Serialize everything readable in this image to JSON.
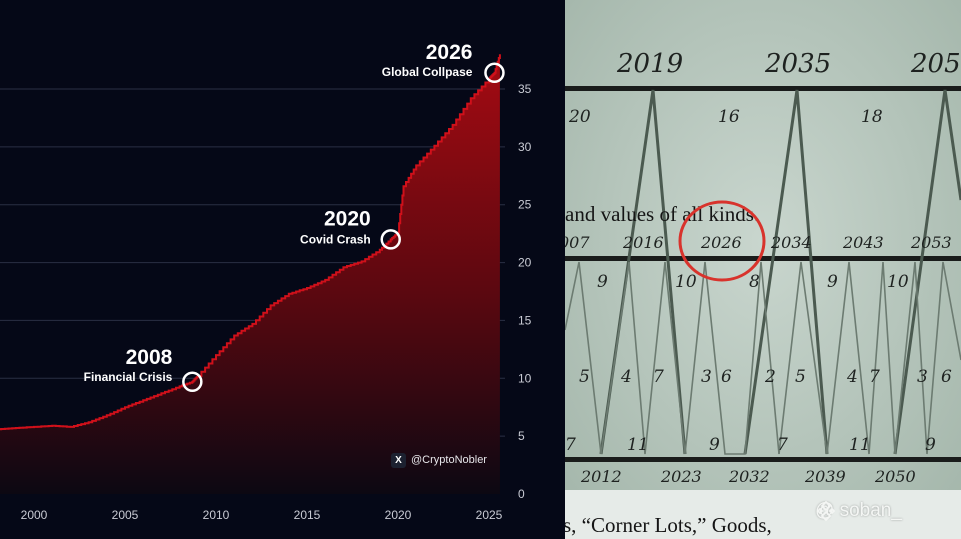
{
  "chart_data": {
    "type": "area",
    "x": [
      1998,
      1999,
      2000,
      2001,
      2002,
      2003,
      2004,
      2005,
      2006,
      2007,
      2008,
      2008.7,
      2009,
      2010,
      2011,
      2012,
      2013,
      2014,
      2015,
      2016,
      2017,
      2018,
      2019,
      2019.6,
      2020,
      2020.3,
      2021,
      2022,
      2023,
      2024,
      2025,
      2025.3,
      2025.6
    ],
    "values": [
      5.6,
      5.7,
      5.8,
      5.9,
      5.8,
      6.2,
      6.8,
      7.5,
      8.1,
      8.7,
      9.3,
      9.7,
      10.2,
      12.0,
      13.7,
      14.7,
      16.3,
      17.3,
      17.8,
      18.5,
      19.6,
      20.1,
      21.1,
      22.0,
      22.6,
      26.6,
      28.4,
      30.1,
      31.9,
      34.2,
      35.9,
      36.4,
      38.0
    ],
    "xlim": [
      1998,
      2026
    ],
    "ylim": [
      0,
      40
    ],
    "x_ticks": [
      "2000",
      "2005",
      "2010",
      "2015",
      "2020",
      "2025"
    ],
    "y_ticks": [
      "0",
      "5",
      "10",
      "15",
      "20",
      "25",
      "30",
      "35"
    ],
    "y_axis_side": "right",
    "grid": true,
    "colors": {
      "line": "#d0101a",
      "fill_top": "#a50b12",
      "fill_bottom": "#0c0812",
      "background": "#050817"
    },
    "annotations": [
      {
        "year": "2008",
        "label": "Financial Crisis",
        "x": 2008.7,
        "y": 9.7
      },
      {
        "year": "2020",
        "label": "Covid Crash",
        "x": 2019.6,
        "y": 22.0
      },
      {
        "year": "2026",
        "label": "Global Collpase",
        "x": 2025.3,
        "y": 36.4
      }
    ]
  },
  "credit": {
    "icon": "x-logo-icon",
    "x_letter": "X",
    "handle": "@CryptoNobler"
  },
  "right_panel": {
    "top_years": [
      "2019",
      "2035",
      "205"
    ],
    "top_numbers": [
      "20",
      "16",
      "18"
    ],
    "text_line_1": "and values of all kinds.",
    "middle_years": [
      "007",
      "2016",
      "2026",
      "2034",
      "2043",
      "2053"
    ],
    "row_numbers_1": [
      "9",
      "10",
      "8",
      "9",
      "10"
    ],
    "row_numbers_2": [
      "5",
      "4",
      "7",
      "3",
      "6",
      "2",
      "5",
      "4",
      "7",
      "3",
      "6"
    ],
    "row_numbers_3": [
      "7",
      "11",
      "9",
      "7",
      "11",
      "9"
    ],
    "bottom_years": [
      "2012",
      "2023",
      "2032",
      "2039",
      "2050"
    ],
    "text_line_2": "s, “Corner Lots,” Goods,",
    "circled_year": "2026",
    "circle_color": "#d8332c"
  },
  "watermark": {
    "icon": "binance-logo-icon",
    "handle": "@ soban_"
  }
}
